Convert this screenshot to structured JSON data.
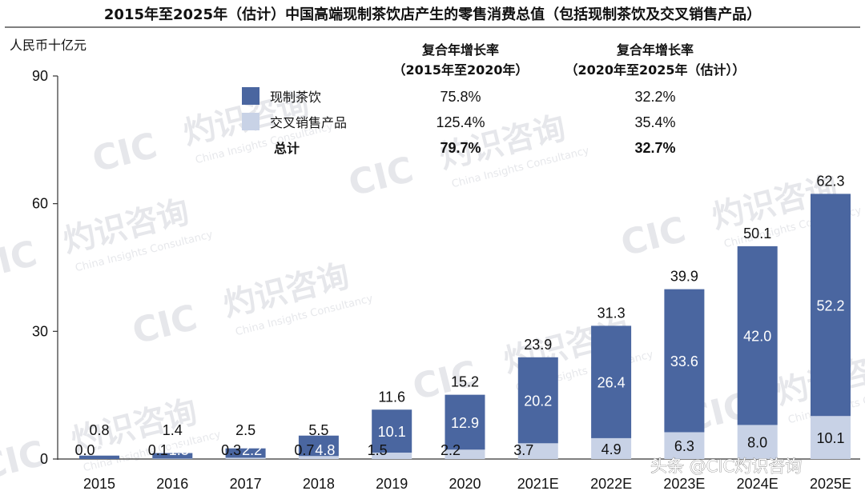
{
  "title": "2015年至2025年（估计）中国高端现制茶饮店产生的零售消费总值（包括现制茶饮及交叉销售产品）",
  "unit_label": "人民币十亿元",
  "colors": {
    "tea": "#4a66a0",
    "cross": "#c8d2e6",
    "axis": "#333333"
  },
  "chart_data": {
    "type": "bar",
    "stacked": true,
    "categories": [
      "2015",
      "2016",
      "2017",
      "2018",
      "2019",
      "2020",
      "2021E",
      "2022E",
      "2023E",
      "2024E",
      "2025E"
    ],
    "series": [
      {
        "name": "交叉销售产品",
        "color": "#c8d2e6",
        "values": [
          0.0,
          0.1,
          0.3,
          0.7,
          1.5,
          2.2,
          3.7,
          4.9,
          6.3,
          8.0,
          10.1
        ],
        "labels": [
          "0.0",
          "0.1",
          "0.3",
          "0.7",
          "1.5",
          "2.2",
          "3.7",
          "4.9",
          "6.3",
          "8.0",
          "10.1"
        ]
      },
      {
        "name": "现制茶饮",
        "color": "#4a66a0",
        "values": [
          0.8,
          1.3,
          2.2,
          4.8,
          10.1,
          12.9,
          20.2,
          26.4,
          33.6,
          42.0,
          52.2
        ],
        "labels": [
          "0.8",
          "1.3",
          "2.2",
          "4.8",
          "10.1",
          "12.9",
          "20.2",
          "26.4",
          "33.6",
          "42.0",
          "52.2"
        ]
      }
    ],
    "totals": [
      0.8,
      1.4,
      2.5,
      5.5,
      11.6,
      15.2,
      23.9,
      31.3,
      39.9,
      50.1,
      62.3
    ],
    "total_labels": [
      "0.8",
      "1.4",
      "2.5",
      "5.5",
      "11.6",
      "15.2",
      "23.9",
      "31.3",
      "39.9",
      "50.1",
      "62.3"
    ],
    "y_ticks": [
      "0",
      "30",
      "60",
      "90"
    ],
    "ylim": [
      0,
      90
    ],
    "grid": false,
    "legend_position": "top-left"
  },
  "cagr": {
    "col1_header_1": "复合年增长率",
    "col1_header_2": "（2015年至2020年）",
    "col2_header_1": "复合年增长率",
    "col2_header_2": "（2020年至2025年（估计））",
    "rows": [
      {
        "label": "现制茶饮",
        "v1": "75.8%",
        "v2": "32.2%"
      },
      {
        "label": "交叉销售产品",
        "v1": "125.4%",
        "v2": "35.4%"
      },
      {
        "label": "总计",
        "v1": "79.7%",
        "v2": "32.7%"
      }
    ]
  },
  "watermark": {
    "logo": "CIC",
    "cn": "灼识咨询",
    "en": "China Insights Consultancy"
  },
  "source": "头条 @CIC灼识咨询"
}
